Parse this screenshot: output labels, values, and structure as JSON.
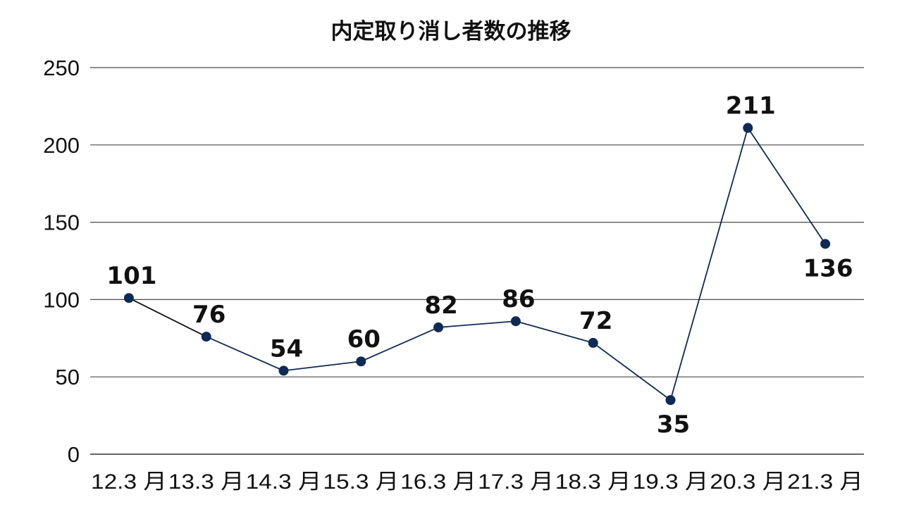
{
  "chart_data": {
    "type": "line",
    "title": "内定取り消し者数の推移",
    "xlabel": "",
    "ylabel": "",
    "categories": [
      "12.3 月",
      "13.3 月",
      "14.3 月",
      "15.3 月",
      "16.3 月",
      "17.3 月",
      "18.3 月",
      "19.3 月",
      "20.3 月",
      "21.3 月"
    ],
    "series": [
      {
        "values": [
          101,
          76,
          54,
          60,
          82,
          86,
          72,
          35,
          211,
          136
        ],
        "color": "#0f2a55",
        "first_segment_color": "#111111"
      }
    ],
    "ylim": [
      0,
      250
    ],
    "yticks": [
      "0",
      "50",
      "100",
      "150",
      "200",
      "250"
    ],
    "ytick_values": [
      0,
      50,
      100,
      150,
      200,
      250
    ],
    "data_labels": [
      "101",
      "76",
      "54",
      "60",
      "82",
      "86",
      "72",
      "35",
      "211",
      "136"
    ],
    "data_label_positions": [
      "above",
      "above",
      "above",
      "above",
      "above",
      "above",
      "above",
      "below",
      "above",
      "below"
    ],
    "grid": true,
    "legend": "none"
  }
}
